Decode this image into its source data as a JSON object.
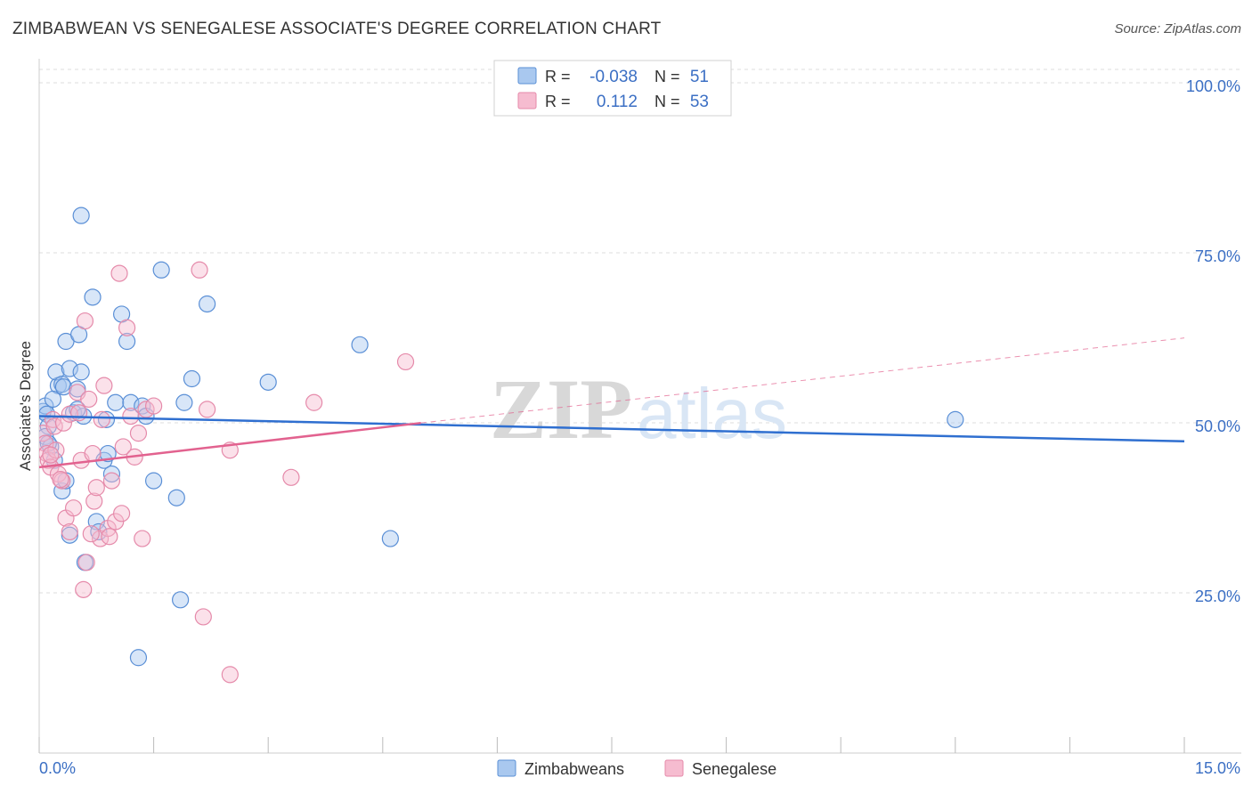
{
  "chart_data": {
    "type": "scatter",
    "title": "ZIMBABWEAN VS SENEGALESE ASSOCIATE'S DEGREE CORRELATION CHART",
    "source": "Source: ZipAtlas.com",
    "ylabel": "Associate's Degree",
    "xlabel": "",
    "xlim": [
      0,
      15
    ],
    "ylim": [
      0,
      105
    ],
    "x_tick_labels": [
      "0.0%",
      "15.0%"
    ],
    "y_ticks": [
      25,
      50,
      75,
      100
    ],
    "y_tick_labels": [
      "25.0%",
      "50.0%",
      "75.0%",
      "100.0%"
    ],
    "watermark": [
      "ZIP",
      "atlas"
    ],
    "colors": {
      "blue_fill": "#a9c8ef",
      "blue_stroke": "#5a8fd6",
      "blue_line": "#2f6fd0",
      "pink_fill": "#f6bcd0",
      "pink_stroke": "#e58aaa",
      "pink_line": "#e2628f",
      "grid": "#dddddd",
      "axis_text": "#3b6fc4"
    },
    "legend": {
      "rows": [
        {
          "r_label": "R =",
          "r_value": "-0.038",
          "n_label": "N =",
          "n_value": "51"
        },
        {
          "r_label": "R =",
          "r_value": "0.112",
          "n_label": "N =",
          "n_value": "53"
        }
      ]
    },
    "series": [
      {
        "name": "Zimbabweans",
        "trend": {
          "x0": 0,
          "y0": 51.5,
          "x1": 15,
          "y1": 47.8
        },
        "points": [
          [
            0.05,
            52.2
          ],
          [
            0.08,
            53.0
          ],
          [
            0.1,
            51.8
          ],
          [
            0.12,
            50.0
          ],
          [
            0.08,
            48.5
          ],
          [
            0.15,
            47.0
          ],
          [
            0.2,
            45.0
          ],
          [
            0.25,
            56.0
          ],
          [
            0.18,
            54.0
          ],
          [
            0.22,
            58.0
          ],
          [
            0.3,
            56.2
          ],
          [
            0.32,
            55.8
          ],
          [
            0.35,
            62.5
          ],
          [
            0.4,
            58.5
          ],
          [
            0.45,
            52.0
          ],
          [
            0.5,
            55.5
          ],
          [
            0.52,
            63.5
          ],
          [
            0.55,
            58.0
          ],
          [
            0.58,
            51.5
          ],
          [
            0.55,
            81.0
          ],
          [
            0.7,
            69.0
          ],
          [
            0.75,
            36.0
          ],
          [
            0.78,
            34.5
          ],
          [
            0.85,
            45.0
          ],
          [
            0.9,
            46.0
          ],
          [
            0.95,
            43.0
          ],
          [
            1.0,
            53.5
          ],
          [
            1.08,
            66.5
          ],
          [
            1.15,
            62.5
          ],
          [
            1.2,
            53.5
          ],
          [
            1.3,
            16.0
          ],
          [
            1.35,
            53.0
          ],
          [
            1.6,
            73.0
          ],
          [
            1.5,
            42.0
          ],
          [
            1.4,
            51.5
          ],
          [
            1.8,
            39.5
          ],
          [
            1.85,
            24.5
          ],
          [
            2.0,
            57.0
          ],
          [
            2.2,
            68.0
          ],
          [
            3.0,
            56.5
          ],
          [
            4.2,
            62.0
          ],
          [
            4.6,
            33.5
          ],
          [
            12.0,
            51.0
          ],
          [
            0.3,
            40.5
          ],
          [
            0.35,
            42.0
          ],
          [
            0.6,
            30.0
          ],
          [
            0.4,
            34.0
          ],
          [
            1.9,
            53.5
          ],
          [
            0.88,
            51.0
          ],
          [
            0.5,
            52.5
          ],
          [
            0.12,
            47.5
          ]
        ]
      },
      {
        "name": "Senegalese",
        "trend": {
          "x0": 0,
          "y0": 44.0,
          "x1": 5.0,
          "y1": 50.5,
          "dash_x1": 15,
          "dash_y1": 63.0
        },
        "points": [
          [
            0.05,
            49.0
          ],
          [
            0.08,
            47.5
          ],
          [
            0.1,
            46.0
          ],
          [
            0.12,
            45.0
          ],
          [
            0.15,
            44.0
          ],
          [
            0.18,
            51.0
          ],
          [
            0.2,
            50.0
          ],
          [
            0.22,
            46.5
          ],
          [
            0.25,
            43.0
          ],
          [
            0.3,
            42.0
          ],
          [
            0.32,
            50.5
          ],
          [
            0.35,
            36.5
          ],
          [
            0.4,
            34.5
          ],
          [
            0.45,
            38.0
          ],
          [
            0.5,
            55.0
          ],
          [
            0.55,
            45.0
          ],
          [
            0.58,
            26.0
          ],
          [
            0.6,
            65.5
          ],
          [
            0.62,
            30.0
          ],
          [
            0.65,
            54.0
          ],
          [
            0.7,
            46.0
          ],
          [
            0.72,
            39.0
          ],
          [
            0.75,
            41.0
          ],
          [
            0.8,
            33.5
          ],
          [
            0.82,
            51.0
          ],
          [
            0.85,
            56.0
          ],
          [
            0.9,
            35.0
          ],
          [
            0.95,
            42.0
          ],
          [
            1.0,
            36.0
          ],
          [
            1.05,
            72.5
          ],
          [
            1.1,
            47.0
          ],
          [
            1.15,
            64.5
          ],
          [
            1.2,
            51.5
          ],
          [
            1.25,
            45.5
          ],
          [
            1.3,
            49.0
          ],
          [
            1.35,
            33.5
          ],
          [
            1.4,
            52.5
          ],
          [
            1.5,
            53.0
          ],
          [
            2.1,
            73.0
          ],
          [
            2.15,
            22.0
          ],
          [
            2.2,
            52.5
          ],
          [
            2.5,
            46.5
          ],
          [
            2.5,
            13.5
          ],
          [
            3.3,
            42.5
          ],
          [
            3.6,
            53.5
          ],
          [
            4.8,
            59.5
          ],
          [
            0.4,
            51.8
          ],
          [
            0.28,
            42.2
          ],
          [
            0.68,
            34.2
          ],
          [
            0.92,
            33.8
          ],
          [
            1.08,
            37.2
          ],
          [
            0.15,
            45.8
          ],
          [
            0.52,
            52.0
          ]
        ]
      }
    ]
  }
}
